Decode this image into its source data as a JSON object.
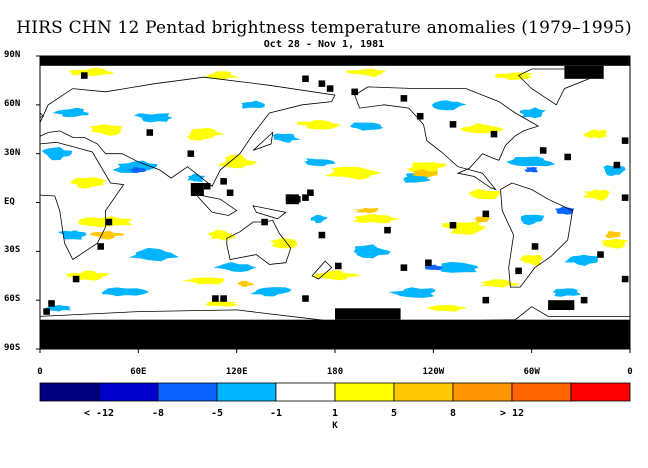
{
  "title": "HIRS CHN 12 Pentad brightness temperature anomalies (1979–1995)",
  "subtitle": "Oct 28 - Nov 1, 1981",
  "lat_labels": [
    "90N",
    "60N",
    "30N",
    "EQ",
    "30S",
    "60S",
    "90S"
  ],
  "lon_labels": [
    "0",
    "60E",
    "120E",
    "180",
    "120W",
    "60W",
    "0"
  ],
  "colorbar": {
    "colors": [
      "#00007f",
      "#0000cc",
      "#0a64ff",
      "#00b4ff",
      "#ffffff",
      "#ffff00",
      "#ffc800",
      "#ff9600",
      "#ff6400",
      "#ff0000"
    ],
    "tick_labels": [
      "< -12",
      "-8",
      "-5",
      "-1",
      "1",
      "5",
      "8",
      "> 12"
    ],
    "unit": "K"
  },
  "map_colors": {
    "land_outline": "#000000",
    "missing": "#000000",
    "warm": "#ffff00",
    "warmer": "#ffc800",
    "cool": "#00b4ff",
    "cooler": "#0a64ff"
  }
}
